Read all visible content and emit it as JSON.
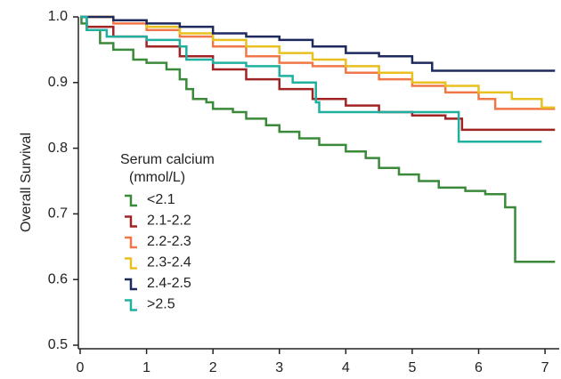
{
  "chart_data": {
    "type": "step",
    "y_label": "Overall Survival",
    "legend_title": [
      "Serum calcium",
      "(mmol/L)"
    ],
    "xlim": [
      0,
      7.2
    ],
    "xticks": [
      0,
      1,
      2,
      3,
      4,
      5,
      6,
      7
    ],
    "ylim": [
      0.5,
      1.0
    ],
    "yticks": [
      0.5,
      0.6,
      0.7,
      0.8,
      0.9,
      {
        "value": 1.0,
        "label": "1.0"
      }
    ],
    "series": [
      {
        "name": "<2.1",
        "color": "#3a8a3a",
        "x": [
          0,
          0.02,
          0.1,
          0.3,
          0.5,
          0.8,
          1.0,
          1.3,
          1.5,
          1.6,
          1.7,
          1.9,
          2.0,
          2.3,
          2.5,
          2.8,
          3.0,
          3.3,
          3.6,
          4.0,
          4.3,
          4.5,
          4.8,
          5.1,
          5.4,
          5.8,
          6.1,
          6.4,
          6.55,
          7.15
        ],
        "values": [
          1.0,
          0.99,
          0.98,
          0.96,
          0.95,
          0.935,
          0.93,
          0.92,
          0.905,
          0.89,
          0.875,
          0.87,
          0.86,
          0.855,
          0.845,
          0.835,
          0.825,
          0.815,
          0.805,
          0.795,
          0.785,
          0.77,
          0.76,
          0.75,
          0.74,
          0.735,
          0.73,
          0.71,
          0.627,
          0.627
        ]
      },
      {
        "name": "2.1-2.2",
        "color": "#a02424",
        "x": [
          0,
          0.1,
          0.5,
          1.0,
          1.5,
          2.0,
          2.5,
          3.0,
          3.5,
          4.0,
          4.5,
          5.0,
          5.5,
          5.75,
          7.15
        ],
        "values": [
          1.0,
          0.985,
          0.97,
          0.955,
          0.94,
          0.92,
          0.905,
          0.89,
          0.875,
          0.865,
          0.855,
          0.85,
          0.845,
          0.828,
          0.828
        ]
      },
      {
        "name": "2.2-2.3",
        "color": "#f07848",
        "x": [
          0,
          0.5,
          1.0,
          1.5,
          2.0,
          2.5,
          3.0,
          3.5,
          4.0,
          4.5,
          5.0,
          5.5,
          6.0,
          6.25,
          7.15
        ],
        "values": [
          1.0,
          0.99,
          0.98,
          0.97,
          0.955,
          0.94,
          0.93,
          0.925,
          0.915,
          0.905,
          0.895,
          0.885,
          0.875,
          0.86,
          0.86
        ]
      },
      {
        "name": "2.3-2.4",
        "color": "#e8c020",
        "x": [
          0,
          0.5,
          1.0,
          1.5,
          2.0,
          2.5,
          3.0,
          3.5,
          4.0,
          4.5,
          5.0,
          5.5,
          6.0,
          6.5,
          6.95,
          7.15
        ],
        "values": [
          1.0,
          0.995,
          0.985,
          0.975,
          0.965,
          0.955,
          0.945,
          0.935,
          0.925,
          0.915,
          0.9,
          0.895,
          0.885,
          0.875,
          0.862,
          0.862
        ]
      },
      {
        "name": "2.4-2.5",
        "color": "#1e2a5e",
        "x": [
          0,
          0.5,
          1.0,
          1.5,
          2.0,
          2.5,
          3.0,
          3.5,
          4.0,
          4.5,
          5.0,
          5.3,
          7.15
        ],
        "values": [
          1.0,
          0.995,
          0.99,
          0.985,
          0.975,
          0.97,
          0.965,
          0.955,
          0.945,
          0.94,
          0.93,
          0.918,
          0.918
        ]
      },
      {
        "name": ">2.5",
        "color": "#20b0a0",
        "x": [
          0,
          0.1,
          0.4,
          1.0,
          1.5,
          1.6,
          2.0,
          2.5,
          3.0,
          3.2,
          3.55,
          3.6,
          5.7,
          6.95
        ],
        "values": [
          1.0,
          0.98,
          0.97,
          0.965,
          0.955,
          0.935,
          0.93,
          0.925,
          0.91,
          0.9,
          0.87,
          0.855,
          0.81,
          0.81
        ]
      }
    ]
  }
}
